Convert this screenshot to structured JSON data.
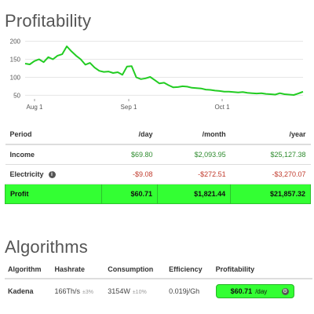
{
  "profitability": {
    "title": "Profitability"
  },
  "chart_data": {
    "type": "line",
    "x_ticks": [
      "Aug 1",
      "Sep 1",
      "Oct 1"
    ],
    "y_ticks": [
      200,
      150,
      100,
      50
    ],
    "ylim": [
      40,
      210
    ],
    "grid": true,
    "color": "#22cc22",
    "series": [
      {
        "values": [
          138,
          136,
          145,
          150,
          142,
          156,
          150,
          160,
          164,
          186,
          172,
          160,
          150,
          135,
          140,
          127,
          118,
          115,
          116,
          112,
          114,
          107,
          130,
          131,
          100,
          95,
          97,
          101,
          92,
          83,
          85,
          78,
          72,
          73,
          75,
          74,
          71,
          70,
          69,
          66,
          65,
          63,
          62,
          60,
          60,
          59,
          58,
          59,
          57,
          56,
          55,
          56,
          54,
          53,
          52,
          56,
          53,
          52,
          51,
          55,
          60
        ]
      }
    ]
  },
  "table": {
    "headers": [
      "Period",
      "/day",
      "/month",
      "/year"
    ],
    "rows": [
      {
        "label": "Income",
        "day": "$69.80",
        "month": "$2,093.95",
        "year": "$25,127.38"
      },
      {
        "label": "Electricity",
        "day": "-$9.08",
        "month": "-$272.51",
        "year": "-$3,270.07"
      },
      {
        "label": "Profit",
        "day": "$60.71",
        "month": "$1,821.44",
        "year": "$21,857.32"
      }
    ]
  },
  "algorithms": {
    "title": "Algorithms",
    "headers": [
      "Algorithm",
      "Hashrate",
      "Consumption",
      "Efficiency",
      "Profitability"
    ],
    "row": {
      "name": "Kadena",
      "hashrate": "166Th/s",
      "hashrate_tol": "±3%",
      "consumption": "3154W",
      "consumption_tol": "±10%",
      "efficiency": "0.019j/Gh",
      "profit_value": "$60.71",
      "profit_unit": "/day"
    }
  },
  "colors": {
    "profit_highlight": "#33ff33",
    "positive": "#2e8b2e",
    "negative": "#c0392b",
    "link": "#2a7ab8"
  }
}
